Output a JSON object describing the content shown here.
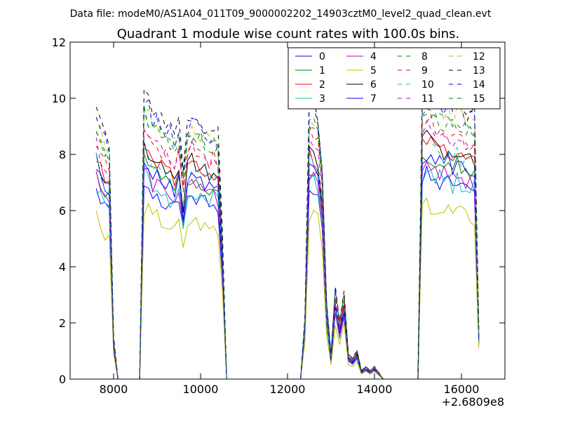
{
  "header": {
    "caption": "Data file: modeM0/AS1A04_011T09_9000002202_14903cztM0_level2_quad_clean.evt"
  },
  "chart_data": {
    "type": "line",
    "title": "Quadrant 1 module wise count rates with 100.0s bins.",
    "xlabel": "",
    "ylabel": "",
    "x_offset_label": "+2.6809e8",
    "xlim": [
      7000,
      17000
    ],
    "ylim": [
      0,
      12
    ],
    "xticks": [
      8000,
      10000,
      12000,
      14000,
      16000
    ],
    "xtick_labels": [
      "8000",
      "10000",
      "12000",
      "14000",
      "16000"
    ],
    "yticks": [
      0,
      2,
      4,
      6,
      8,
      10,
      12
    ],
    "ytick_labels": [
      "0",
      "2",
      "4",
      "6",
      "8",
      "10",
      "12"
    ],
    "grid": false,
    "legend_location": "upper right",
    "legend_columns": 4,
    "x": [
      7600,
      7700,
      7800,
      7900,
      8000,
      8100,
      8200,
      8300,
      8400,
      8500,
      8600,
      8700,
      8800,
      8900,
      9000,
      9100,
      9200,
      9300,
      9400,
      9500,
      9600,
      9700,
      9800,
      9900,
      10000,
      10100,
      10200,
      10300,
      10400,
      10500,
      10600,
      10700,
      10800,
      10900,
      11000,
      11100,
      11200,
      11300,
      11400,
      11500,
      11600,
      11700,
      11800,
      11900,
      12000,
      12100,
      12200,
      12300,
      12400,
      12500,
      12600,
      12700,
      12800,
      12900,
      13000,
      13100,
      13200,
      13300,
      13400,
      13500,
      13600,
      13700,
      13800,
      13900,
      14000,
      14100,
      14200,
      14300,
      14400,
      14500,
      14600,
      14700,
      14800,
      14900,
      15000,
      15100,
      15200,
      15300,
      15400,
      15500,
      15600,
      15700,
      15800,
      15900,
      16000,
      16100,
      16200,
      16300,
      16400
    ],
    "base_profile": [
      6.5,
      6.1,
      5.8,
      5.7,
      1.0,
      0,
      0,
      0,
      0,
      0,
      0,
      6.8,
      6.6,
      6.3,
      6.4,
      6.2,
      6.1,
      6.0,
      5.8,
      6.2,
      5.0,
      6.1,
      6.3,
      6.2,
      6.1,
      6.0,
      5.9,
      6.0,
      5.8,
      3.5,
      0,
      0,
      0,
      0,
      0,
      0,
      0,
      0,
      0,
      0,
      0,
      0,
      0,
      0,
      0,
      0,
      0,
      0,
      1.5,
      6.6,
      6.5,
      6.3,
      5.0,
      1.8,
      0.6,
      2.2,
      1.4,
      2.1,
      0.6,
      0.5,
      0.7,
      0.2,
      0.3,
      0.2,
      0.3,
      0.15,
      0,
      0,
      0,
      0,
      0,
      0,
      0,
      0,
      0,
      6.8,
      7.0,
      6.9,
      6.8,
      6.7,
      6.6,
      6.7,
      6.5,
      6.6,
      6.5,
      6.4,
      6.4,
      6.3,
      1.2
    ],
    "series": [
      {
        "name": "0",
        "color": "#0000ff",
        "dashed": false,
        "scale": 1.04,
        "jitter": 0.3,
        "seed": 1
      },
      {
        "name": "1",
        "color": "#008000",
        "dashed": false,
        "scale": 1.15,
        "jitter": 0.3,
        "seed": 2
      },
      {
        "name": "2",
        "color": "#ff0000",
        "dashed": false,
        "scale": 1.22,
        "jitter": 0.3,
        "seed": 3
      },
      {
        "name": "3",
        "color": "#00bfbf",
        "dashed": false,
        "scale": 1.07,
        "jitter": 0.35,
        "seed": 4
      },
      {
        "name": "4",
        "color": "#bf00bf",
        "dashed": false,
        "scale": 1.1,
        "jitter": 0.3,
        "seed": 5
      },
      {
        "name": "5",
        "color": "#bfbf00",
        "dashed": false,
        "scale": 0.9,
        "jitter": 0.3,
        "seed": 6
      },
      {
        "name": "6",
        "color": "#000000",
        "dashed": false,
        "scale": 1.23,
        "jitter": 0.3,
        "seed": 7
      },
      {
        "name": "7",
        "color": "#0000ff",
        "dashed": false,
        "scale": 1.16,
        "jitter": 0.3,
        "seed": 8
      },
      {
        "name": "8",
        "color": "#008000",
        "dashed": true,
        "scale": 1.38,
        "jitter": 0.3,
        "seed": 9
      },
      {
        "name": "9",
        "color": "#ff0000",
        "dashed": true,
        "scale": 1.32,
        "jitter": 0.3,
        "seed": 10
      },
      {
        "name": "10",
        "color": "#00bfbf",
        "dashed": true,
        "scale": 1.2,
        "jitter": 0.3,
        "seed": 11
      },
      {
        "name": "11",
        "color": "#bf00bf",
        "dashed": true,
        "scale": 1.3,
        "jitter": 0.3,
        "seed": 12
      },
      {
        "name": "12",
        "color": "#bfbf00",
        "dashed": true,
        "scale": 1.43,
        "jitter": 0.3,
        "seed": 13
      },
      {
        "name": "13",
        "color": "#000000",
        "dashed": true,
        "scale": 1.5,
        "jitter": 0.3,
        "seed": 14
      },
      {
        "name": "14",
        "color": "#0000ff",
        "dashed": true,
        "scale": 1.46,
        "jitter": 0.3,
        "seed": 15
      },
      {
        "name": "15",
        "color": "#008000",
        "dashed": true,
        "scale": 1.4,
        "jitter": 0.3,
        "seed": 16
      }
    ]
  }
}
